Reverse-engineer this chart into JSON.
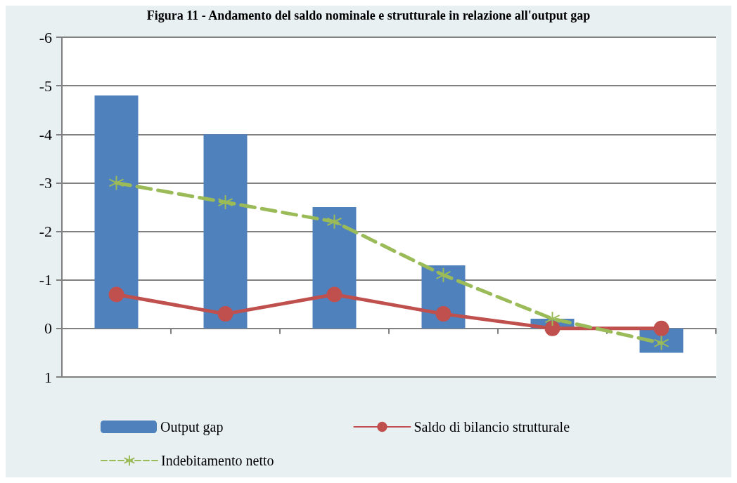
{
  "chart_data": {
    "type": "bar",
    "title": "Figura 11 - Andamento del saldo nominale e strutturale in relazione all'output gap",
    "categories": [
      null,
      null,
      null,
      null,
      null,
      null
    ],
    "series": [
      {
        "name": "Output gap",
        "color": "#4f81bd",
        "values": [
          -4.8,
          -4.0,
          -2.5,
          -1.3,
          -0.2,
          0.5
        ]
      },
      {
        "name": "Saldo di bilancio strutturale",
        "type": "line",
        "color": "#c0504d",
        "marker": "circle",
        "line_style": "solid",
        "values": [
          -0.7,
          -0.3,
          -0.7,
          -0.3,
          0,
          0
        ]
      },
      {
        "name": "Indebitamento netto",
        "type": "line",
        "color": "#9bbb59",
        "marker": "cross",
        "line_style": "dashed",
        "values": [
          -3,
          -2.6,
          -2.2,
          -1.1,
          -0.2,
          0.3
        ]
      }
    ],
    "ylim": [
      1,
      -6
    ],
    "yticks": [
      1,
      0,
      -1,
      -2,
      -3,
      -4,
      -5,
      -6
    ],
    "grid": "y",
    "legend": "bottom"
  }
}
